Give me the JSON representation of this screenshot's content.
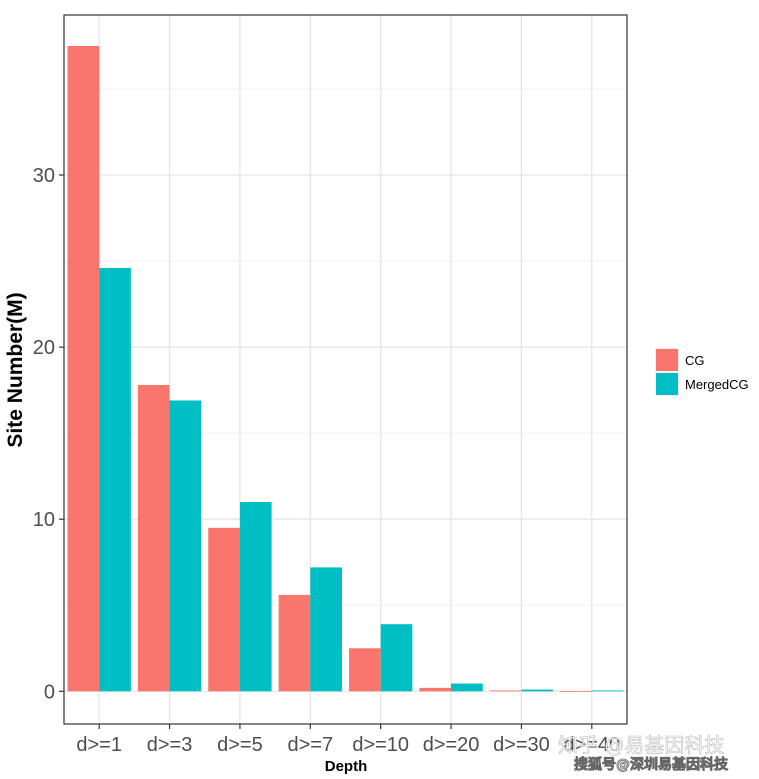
{
  "chart_data": {
    "type": "bar",
    "xlabel": "Depth",
    "ylabel": "Site Number(M)",
    "categories": [
      "d>=1",
      "d>=3",
      "d>=5",
      "d>=7",
      "d>=10",
      "d>=20",
      "d>=30",
      "d>=40"
    ],
    "series": [
      {
        "name": "CG",
        "color": "#F8766D",
        "values": [
          37.5,
          17.8,
          9.5,
          5.6,
          2.5,
          0.2,
          0.05,
          0.02
        ]
      },
      {
        "name": "MergedCG",
        "color": "#00BFC4",
        "values": [
          24.6,
          16.9,
          11.0,
          7.2,
          3.9,
          0.45,
          0.1,
          0.05
        ]
      }
    ],
    "yticks": [
      0,
      10,
      20,
      30
    ],
    "ylim": [
      -1.9,
      39.3
    ],
    "grid": true,
    "legend_position": "right"
  },
  "watermarks": [
    "知乎 @易基因科技",
    "搜狐号@深圳易基因科技"
  ]
}
